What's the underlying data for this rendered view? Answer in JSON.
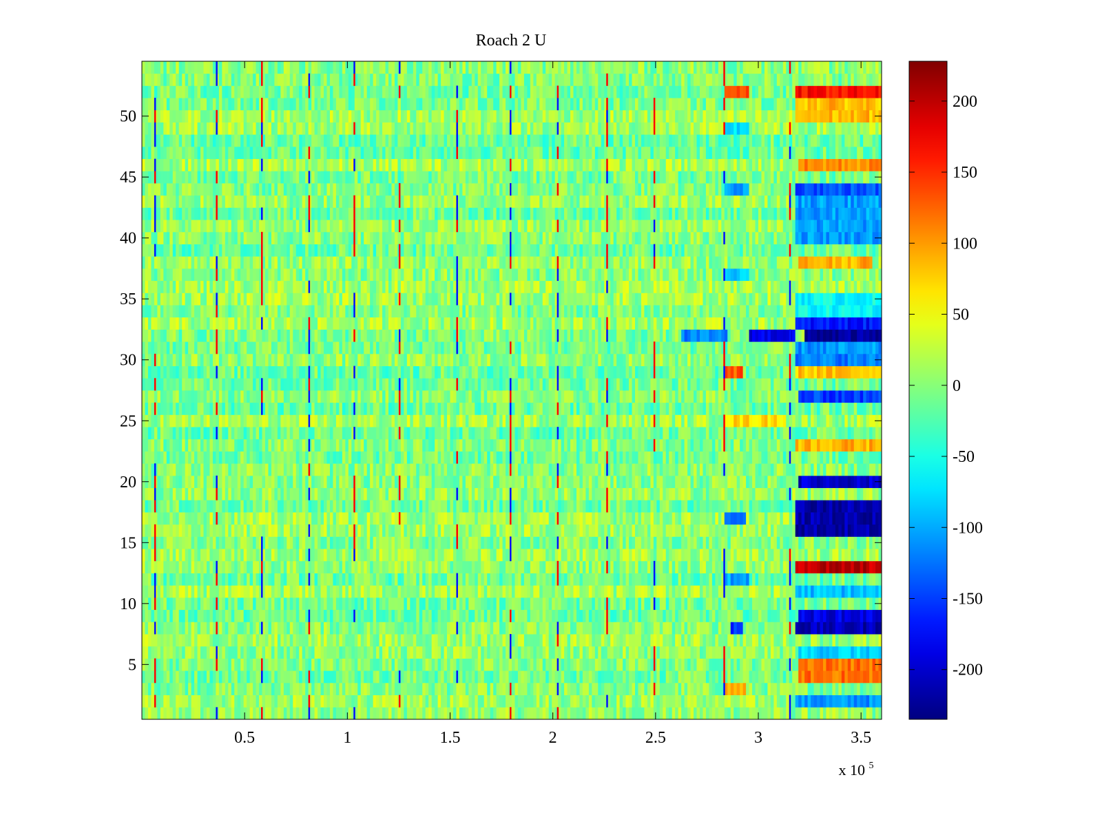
{
  "chart_data": {
    "type": "heatmap",
    "title": "Roach 2 U",
    "xlabel": "",
    "ylabel": "",
    "x_exponent_label": "x 10",
    "x_exponent_power": "5",
    "xlim": [
      0,
      360000
    ],
    "ylim": [
      0.5,
      54.5
    ],
    "x_ticks": [
      50000,
      100000,
      150000,
      200000,
      250000,
      300000,
      350000
    ],
    "x_tick_labels": [
      "0.5",
      "1",
      "1.5",
      "2",
      "2.5",
      "3",
      "3.5"
    ],
    "y_ticks": [
      5,
      10,
      15,
      20,
      25,
      30,
      35,
      40,
      45,
      50
    ],
    "y_tick_labels": [
      "5",
      "10",
      "15",
      "20",
      "25",
      "30",
      "35",
      "40",
      "45",
      "50"
    ],
    "colormap": "jet",
    "clim": [
      -235,
      228
    ],
    "colorbar_ticks": [
      200,
      150,
      100,
      50,
      0,
      -50,
      -100,
      -150,
      -200
    ],
    "colorbar_tick_labels": [
      "200",
      "150",
      "100",
      "50",
      "0",
      "-50",
      "-100",
      "-150",
      "-200"
    ],
    "rows": 54,
    "grid": false,
    "colorbar_placement": "right",
    "description_of_values": "Background values mostly -40 to 40 across all rows; strong high/low values appear after x≈2.85e5, especially after x≈3.2e5.",
    "segments": [
      {
        "rows": [
          52,
          52
        ],
        "x": [
          284000,
          295000
        ],
        "value": 140
      },
      {
        "rows": [
          52,
          52
        ],
        "x": [
          318000,
          360000
        ],
        "value": 165
      },
      {
        "rows": [
          51,
          50
        ],
        "x": [
          318000,
          360000
        ],
        "value": 85
      },
      {
        "rows": [
          49,
          49
        ],
        "x": [
          284000,
          295000
        ],
        "value": -75
      },
      {
        "rows": [
          46,
          46
        ],
        "x": [
          320000,
          360000
        ],
        "value": 105
      },
      {
        "rows": [
          44,
          44
        ],
        "x": [
          284000,
          295000
        ],
        "value": -110
      },
      {
        "rows": [
          44,
          44
        ],
        "x": [
          318000,
          360000
        ],
        "value": -140
      },
      {
        "rows": [
          43,
          40
        ],
        "x": [
          318000,
          360000
        ],
        "value": -105
      },
      {
        "rows": [
          38,
          38
        ],
        "x": [
          320000,
          355000
        ],
        "value": 90
      },
      {
        "rows": [
          37,
          37
        ],
        "x": [
          284000,
          295000
        ],
        "value": -80
      },
      {
        "rows": [
          35,
          34
        ],
        "x": [
          318000,
          360000
        ],
        "value": -60
      },
      {
        "rows": [
          33,
          33
        ],
        "x": [
          318000,
          360000
        ],
        "value": -170
      },
      {
        "rows": [
          32,
          32
        ],
        "x": [
          262000,
          285000
        ],
        "value": -120
      },
      {
        "rows": [
          32,
          32
        ],
        "x": [
          295000,
          318000
        ],
        "value": -185
      },
      {
        "rows": [
          32,
          32
        ],
        "x": [
          323000,
          360000
        ],
        "value": -225
      },
      {
        "rows": [
          31,
          31
        ],
        "x": [
          318000,
          360000
        ],
        "value": -110
      },
      {
        "rows": [
          30,
          30
        ],
        "x": [
          318000,
          360000
        ],
        "value": -120
      },
      {
        "rows": [
          29,
          29
        ],
        "x": [
          284000,
          292000
        ],
        "value": 130
      },
      {
        "rows": [
          29,
          29
        ],
        "x": [
          318000,
          360000
        ],
        "value": 80
      },
      {
        "rows": [
          27,
          27
        ],
        "x": [
          320000,
          360000
        ],
        "value": -150
      },
      {
        "rows": [
          25,
          25
        ],
        "x": [
          284000,
          313000
        ],
        "value": 70
      },
      {
        "rows": [
          23,
          23
        ],
        "x": [
          318000,
          360000
        ],
        "value": 90
      },
      {
        "rows": [
          20,
          20
        ],
        "x": [
          320000,
          360000
        ],
        "value": -200
      },
      {
        "rows": [
          18,
          16
        ],
        "x": [
          318000,
          360000
        ],
        "value": -215
      },
      {
        "rows": [
          17,
          17
        ],
        "x": [
          284000,
          294000
        ],
        "value": -140
      },
      {
        "rows": [
          13,
          13
        ],
        "x": [
          318000,
          360000
        ],
        "value": 200
      },
      {
        "rows": [
          12,
          12
        ],
        "x": [
          284000,
          295000
        ],
        "value": -100
      },
      {
        "rows": [
          11,
          11
        ],
        "x": [
          318000,
          360000
        ],
        "value": -90
      },
      {
        "rows": [
          9,
          9
        ],
        "x": [
          320000,
          360000
        ],
        "value": -190
      },
      {
        "rows": [
          8,
          8
        ],
        "x": [
          318000,
          360000
        ],
        "value": -210
      },
      {
        "rows": [
          8,
          8
        ],
        "x": [
          286000,
          293000
        ],
        "value": -150
      },
      {
        "rows": [
          6,
          6
        ],
        "x": [
          320000,
          360000
        ],
        "value": -80
      },
      {
        "rows": [
          5,
          4
        ],
        "x": [
          320000,
          360000
        ],
        "value": 120
      },
      {
        "rows": [
          3,
          3
        ],
        "x": [
          284000,
          294000
        ],
        "value": 90
      },
      {
        "rows": [
          2,
          2
        ],
        "x": [
          318000,
          360000
        ],
        "value": -110
      }
    ],
    "vertical_streak_x": [
      6000,
      36000,
      58000,
      81000,
      103000,
      125000,
      153000,
      179000,
      202000,
      226000,
      249000,
      283000,
      315000
    ]
  }
}
